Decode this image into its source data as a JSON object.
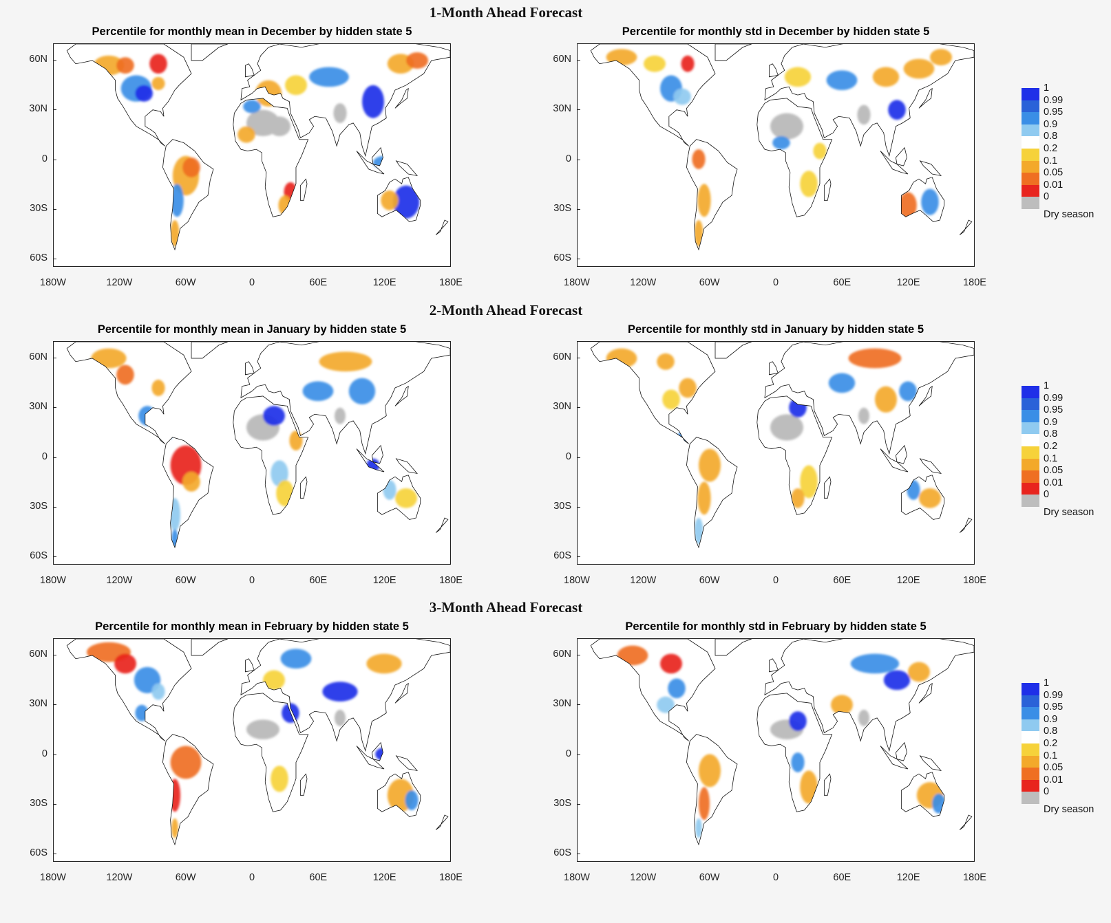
{
  "rows": [
    {
      "title": "1-Month Ahead Forecast",
      "panels": [
        {
          "title": "Percentile for monthly mean in December by hidden state 5"
        },
        {
          "title": "Percentile for monthly std in December by hidden state 5"
        }
      ]
    },
    {
      "title": "2-Month Ahead Forecast",
      "panels": [
        {
          "title": "Percentile for monthly mean in January by hidden state 5"
        },
        {
          "title": "Percentile for monthly std in January by hidden state 5"
        }
      ]
    },
    {
      "title": "3-Month Ahead Forecast",
      "panels": [
        {
          "title": "Percentile for monthly mean in February by hidden state 5"
        },
        {
          "title": "Percentile for monthly std in February by hidden state 5"
        }
      ]
    }
  ],
  "axes": {
    "y_ticks": [
      "60N",
      "30N",
      "0",
      "30S",
      "60S"
    ],
    "x_ticks": [
      "180W",
      "120W",
      "60W",
      "0",
      "60E",
      "120E",
      "180E"
    ]
  },
  "legend": {
    "labels": [
      "1",
      "0.99",
      "0.95",
      "0.9",
      "0.8",
      "0.2",
      "0.1",
      "0.05",
      "0.01",
      "0",
      "Dry season"
    ],
    "colors": [
      "#1f2fe8",
      "#2a62d8",
      "#3a8ee6",
      "#8fcaf0",
      "#ffffff",
      "#f6d23a",
      "#f3a92a",
      "#ef6f22",
      "#e8241e",
      "#bdbdbd"
    ]
  },
  "colors": {
    "blue_dark": "#1f2fe8",
    "blue": "#3a8ee6",
    "blue_light": "#8fcaf0",
    "yellow": "#f6d23a",
    "orange": "#f3a92a",
    "red_orange": "#ef6f22",
    "red": "#e8241e",
    "dry": "#bdbdbd"
  }
}
